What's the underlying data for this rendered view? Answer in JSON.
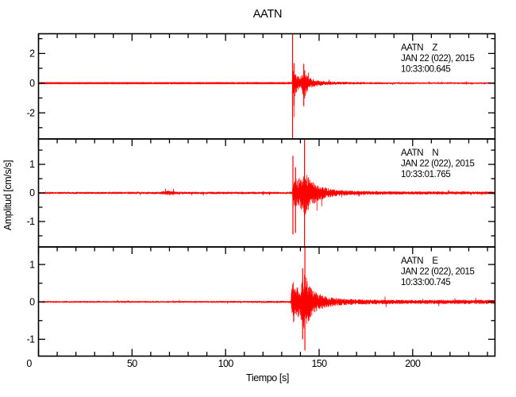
{
  "figure": {
    "background": "#ffffff",
    "axis_color": "#000000",
    "trace_color": "#ff0000"
  },
  "chart_data": {
    "type": "line",
    "subtype": "seismogram-3-component",
    "title": "AATN",
    "xlabel": "Tiempo [s]",
    "ylabel": "Amplitud [cm/s/s]",
    "grid": false,
    "x_axis": {
      "min": 0,
      "max": 244,
      "major_ticks": [
        0,
        50,
        100,
        150,
        200
      ],
      "tick_labels": [
        "0",
        "50",
        "100",
        "150",
        "200"
      ],
      "minor_step": 10
    },
    "panels": [
      {
        "component": "Z",
        "annotation": {
          "lines": [
            "AATN    Z",
            "JAN 22 (022), 2015",
            "10:33:00.645"
          ]
        },
        "y_axis": {
          "min": -3.76,
          "max": 3.33,
          "major_ticks": [
            -2,
            0,
            2
          ],
          "tick_labels": [
            "-2",
            "0",
            "2"
          ],
          "minor_step": 1
        },
        "seed": 11,
        "event_onset_s": 135.8,
        "envelope": [
          [
            0,
            0.025
          ],
          [
            130,
            0.027
          ],
          [
            135.5,
            0.035
          ],
          [
            135.9,
            0.9
          ],
          [
            136.6,
            1.05
          ],
          [
            137.5,
            0.72
          ],
          [
            138.5,
            0.5
          ],
          [
            139.5,
            0.42
          ],
          [
            140.5,
            0.55
          ],
          [
            141.3,
            0.92
          ],
          [
            142.2,
            1.05
          ],
          [
            143,
            0.72
          ],
          [
            144,
            0.5
          ],
          [
            145.5,
            0.35
          ],
          [
            147,
            0.27
          ],
          [
            149,
            0.21
          ],
          [
            152,
            0.16
          ],
          [
            156,
            0.12
          ],
          [
            160,
            0.1
          ],
          [
            166,
            0.085
          ],
          [
            175,
            0.07
          ],
          [
            190,
            0.06
          ],
          [
            210,
            0.055
          ],
          [
            244,
            0.05
          ]
        ],
        "spikes": [
          {
            "t": 135.8,
            "hi": 99,
            "lo": -99
          },
          {
            "t": 136.6,
            "hi": 1.35,
            "lo": -1.5
          },
          {
            "t": 141.8,
            "hi": 1.3,
            "lo": -1.55
          }
        ]
      },
      {
        "component": "N",
        "annotation": {
          "lines": [
            "AATN    N",
            "JAN 22 (022), 2015",
            "10:33:01.765"
          ]
        },
        "y_axis": {
          "min": -1.89,
          "max": 1.89,
          "major_ticks": [
            -1,
            0,
            1
          ],
          "tick_labels": [
            "-1",
            "0",
            "1"
          ],
          "minor_step": 0.5
        },
        "seed": 22,
        "event_onset_s": 136.0,
        "envelope": [
          [
            0,
            0.035
          ],
          [
            64,
            0.04
          ],
          [
            70,
            0.085
          ],
          [
            74,
            0.05
          ],
          [
            80,
            0.04
          ],
          [
            134,
            0.04
          ],
          [
            135.6,
            0.05
          ],
          [
            136,
            0.6
          ],
          [
            137,
            0.55
          ],
          [
            138.5,
            0.5
          ],
          [
            140,
            0.55
          ],
          [
            141.5,
            0.7
          ],
          [
            142.3,
            0.85
          ],
          [
            143.2,
            0.7
          ],
          [
            144.5,
            0.55
          ],
          [
            146,
            0.45
          ],
          [
            148,
            0.35
          ],
          [
            150,
            0.28
          ],
          [
            153,
            0.2
          ],
          [
            156,
            0.15
          ],
          [
            160,
            0.11
          ],
          [
            165,
            0.09
          ],
          [
            172,
            0.075
          ],
          [
            185,
            0.06
          ],
          [
            205,
            0.055
          ],
          [
            244,
            0.05
          ]
        ],
        "spikes": [
          {
            "t": 136.0,
            "hi": 1.3,
            "lo": -1.45
          },
          {
            "t": 137.4,
            "hi": 0.9,
            "lo": -1.4
          },
          {
            "t": 142.2,
            "hi": 99,
            "lo": -99
          }
        ]
      },
      {
        "component": "E",
        "annotation": {
          "lines": [
            "AATN    E",
            "JAN 22 (022), 2015",
            "10:33:00.745"
          ]
        },
        "y_axis": {
          "min": -1.45,
          "max": 1.47,
          "major_ticks": [
            -1,
            0,
            1
          ],
          "tick_labels": [
            "-1",
            "0",
            "1"
          ],
          "minor_step": 0.5
        },
        "seed": 33,
        "event_onset_s": 135.4,
        "envelope": [
          [
            0,
            0.022
          ],
          [
            100,
            0.024
          ],
          [
            134.8,
            0.03
          ],
          [
            135.4,
            0.45
          ],
          [
            136,
            0.62
          ],
          [
            137,
            0.55
          ],
          [
            137.8,
            0.42
          ],
          [
            139,
            0.38
          ],
          [
            140,
            0.5
          ],
          [
            141,
            0.62
          ],
          [
            142,
            0.75
          ],
          [
            143,
            0.72
          ],
          [
            144,
            0.55
          ],
          [
            145.5,
            0.4
          ],
          [
            147,
            0.3
          ],
          [
            149,
            0.24
          ],
          [
            151.5,
            0.19
          ],
          [
            154,
            0.15
          ],
          [
            158,
            0.11
          ],
          [
            163,
            0.09
          ],
          [
            170,
            0.075
          ],
          [
            180,
            0.065
          ],
          [
            200,
            0.055
          ],
          [
            222,
            0.06
          ],
          [
            244,
            0.055
          ]
        ],
        "spikes": [
          {
            "t": 141.2,
            "hi": 0.9,
            "lo": -1.0
          },
          {
            "t": 142.4,
            "hi": 99,
            "lo": -1.3
          }
        ]
      }
    ]
  }
}
